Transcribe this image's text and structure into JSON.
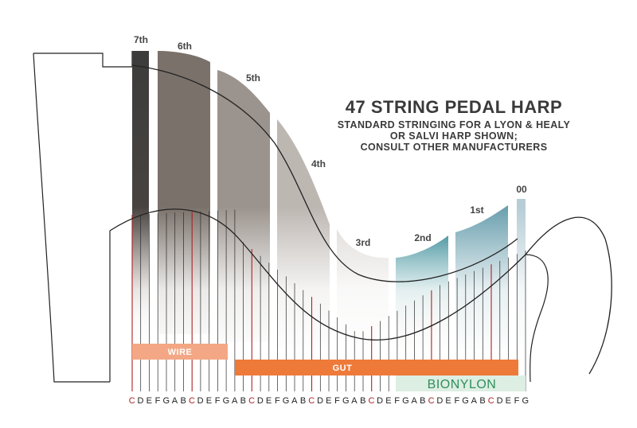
{
  "title": {
    "main": "47 STRING PEDAL HARP",
    "sub_lines": [
      "STANDARD STRINGING FOR A LYON & HEALY",
      "OR SALVI HARP SHOWN;",
      "CONSULT OTHER MANUFACTURERS"
    ]
  },
  "octaves": [
    {
      "label": "7th",
      "color": "#3f3f3f"
    },
    {
      "label": "6th",
      "color": "#7a716a"
    },
    {
      "label": "5th",
      "color": "#9b938d"
    },
    {
      "label": "4th",
      "color": "#c4bfbb"
    },
    {
      "label": "3rd",
      "color": "#dcd7d3"
    },
    {
      "label": "2nd",
      "color": "#0d7180"
    },
    {
      "label": "1st",
      "color": "#6a9fae"
    },
    {
      "label": "00",
      "color": "#b7cdd6"
    }
  ],
  "materials": [
    {
      "label": "WIRE",
      "color": "#f3a784"
    },
    {
      "label": "GUT",
      "color": "#ee7a3a"
    },
    {
      "label": "BIONYLON",
      "color": "#ddeee3"
    }
  ],
  "notes": [
    "C",
    "D",
    "E",
    "F",
    "G",
    "A",
    "B",
    "C",
    "D",
    "E",
    "F",
    "G",
    "A",
    "B",
    "C",
    "D",
    "E",
    "F",
    "G",
    "A",
    "B",
    "C",
    "D",
    "E",
    "F",
    "G",
    "A",
    "B",
    "C",
    "D",
    "E",
    "F",
    "G",
    "A",
    "B",
    "C",
    "D",
    "E",
    "F",
    "G",
    "A",
    "B",
    "C",
    "D",
    "E",
    "F",
    "G"
  ],
  "colors": {
    "c_string": "#b02020",
    "string": "#2a2a2a",
    "outline": "#222222"
  }
}
